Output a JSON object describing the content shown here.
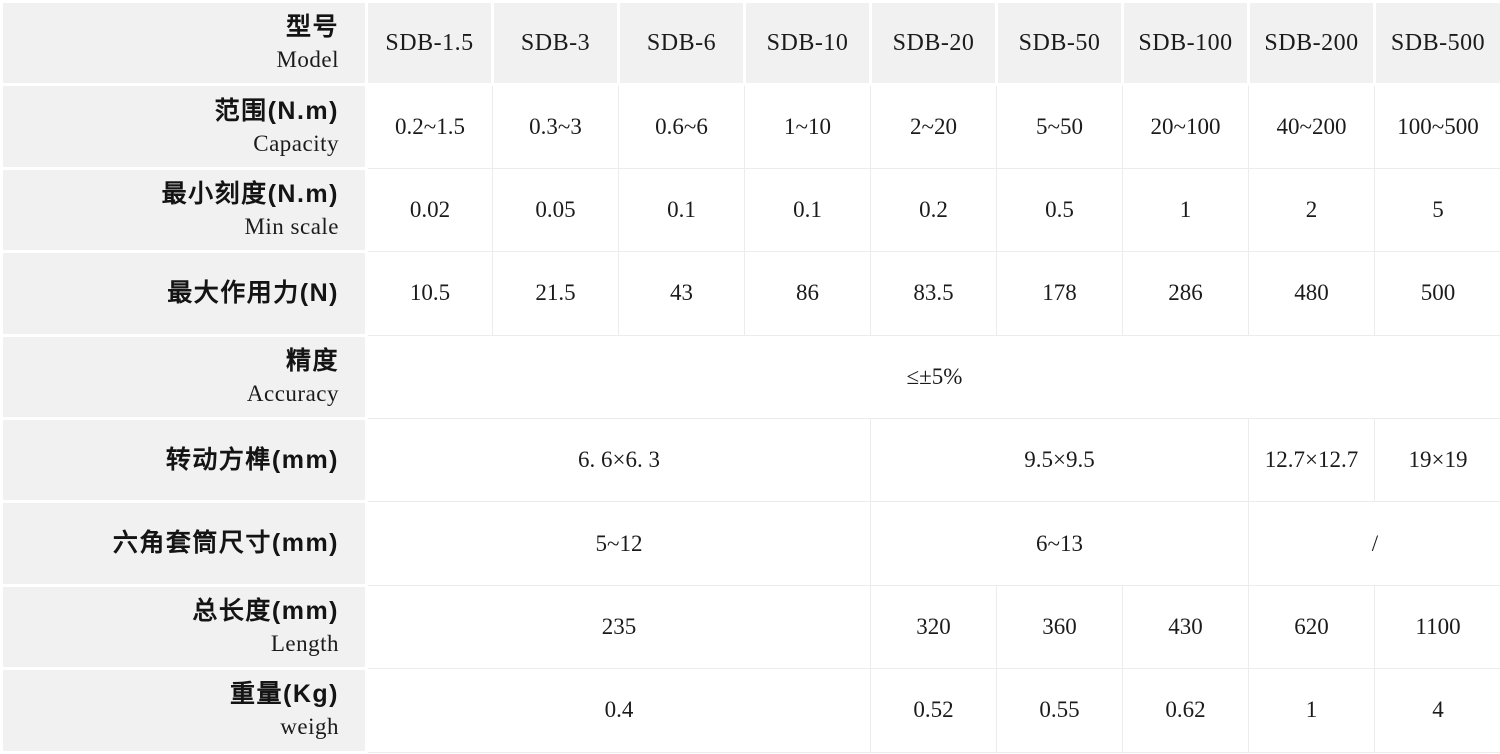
{
  "table": {
    "header": {
      "label_zh": "型号",
      "label_en": "Model",
      "models": [
        "SDB-1.5",
        "SDB-3",
        "SDB-6",
        "SDB-10",
        "SDB-20",
        "SDB-50",
        "SDB-100",
        "SDB-200",
        "SDB-500"
      ]
    },
    "rows": [
      {
        "label_zh": "范围(N.m)",
        "label_en": "Capacity",
        "cells": [
          {
            "text": "0.2~1.5"
          },
          {
            "text": "0.3~3"
          },
          {
            "text": "0.6~6"
          },
          {
            "text": "1~10"
          },
          {
            "text": "2~20"
          },
          {
            "text": "5~50"
          },
          {
            "text": "20~100"
          },
          {
            "text": "40~200"
          },
          {
            "text": "100~500"
          }
        ]
      },
      {
        "label_zh": "最小刻度(N.m)",
        "label_en": "Min scale",
        "cells": [
          {
            "text": "0.02"
          },
          {
            "text": "0.05"
          },
          {
            "text": "0.1"
          },
          {
            "text": "0.1"
          },
          {
            "text": "0.2"
          },
          {
            "text": "0.5"
          },
          {
            "text": "1"
          },
          {
            "text": "2"
          },
          {
            "text": "5"
          }
        ]
      },
      {
        "label_zh": "最大作用力(N)",
        "cells": [
          {
            "text": "10.5"
          },
          {
            "text": "21.5"
          },
          {
            "text": "43"
          },
          {
            "text": "86"
          },
          {
            "text": "83.5"
          },
          {
            "text": "178"
          },
          {
            "text": "286"
          },
          {
            "text": "480"
          },
          {
            "text": "500"
          }
        ]
      },
      {
        "label_zh": "精度",
        "label_en": "Accuracy",
        "cells": [
          {
            "text": "≤±5%",
            "span": 9
          }
        ]
      },
      {
        "label_zh": "转动方榫(mm)",
        "cells": [
          {
            "text": "6. 6×6. 3",
            "span": 4
          },
          {
            "text": "9.5×9.5",
            "span": 3
          },
          {
            "text": "12.7×12.7",
            "span": 1
          },
          {
            "text": "19×19",
            "span": 1
          }
        ]
      },
      {
        "label_zh": "六角套筒尺寸(mm)",
        "cells": [
          {
            "text": "5~12",
            "span": 4
          },
          {
            "text": "6~13",
            "span": 3
          },
          {
            "text": "/",
            "span": 2
          }
        ]
      },
      {
        "label_zh": "总长度(mm)",
        "label_en": "Length",
        "cells": [
          {
            "text": "235",
            "span": 4
          },
          {
            "text": "320"
          },
          {
            "text": "360"
          },
          {
            "text": "430"
          },
          {
            "text": "620"
          },
          {
            "text": "1100"
          }
        ]
      },
      {
        "label_zh": "重量(Kg)",
        "label_en": "weigh",
        "cells": [
          {
            "text": "0.4",
            "span": 4
          },
          {
            "text": "0.52"
          },
          {
            "text": "0.55"
          },
          {
            "text": "0.62"
          },
          {
            "text": "1"
          },
          {
            "text": "4"
          }
        ]
      }
    ]
  },
  "colors": {
    "cell_gray": "#f1f1f1",
    "grid_line": "#ececec",
    "gap_white": "#ffffff",
    "text": "#1b1b1b"
  }
}
